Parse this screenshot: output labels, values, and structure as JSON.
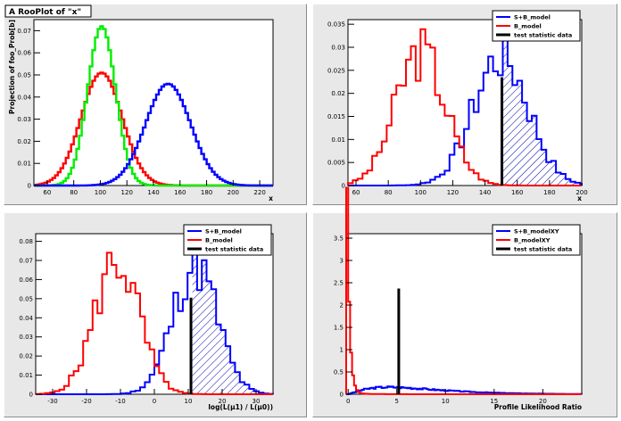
{
  "chart_data": [
    {
      "type": "line",
      "title": "A RooPlot of \"x\"",
      "xlabel": "x",
      "ylabel": "Projection of foo_Prob[b]",
      "xlim": [
        50,
        230
      ],
      "ylim": [
        0,
        0.075
      ],
      "xticks": [
        60,
        80,
        100,
        120,
        140,
        160,
        180,
        200,
        220
      ],
      "yticks": [
        0,
        0.01,
        0.02,
        0.03,
        0.04,
        0.05,
        0.06,
        0.07
      ],
      "series": [
        {
          "color": "#ff0000",
          "shape": "gauss",
          "mean": 100,
          "sigma": 15.5,
          "peak": 0.051
        },
        {
          "color": "#00ee00",
          "shape": "gauss",
          "mean": 100,
          "sigma": 10.5,
          "peak": 0.072
        },
        {
          "color": "#0000ff",
          "shape": "gauss",
          "mean": 150,
          "sigma": 17,
          "peak": 0.046
        }
      ]
    },
    {
      "type": "histogram",
      "title": "",
      "xlabel": "x",
      "ylabel": "",
      "xlim": [
        55,
        200
      ],
      "ylim": [
        0,
        0.036
      ],
      "xticks": [
        60,
        80,
        100,
        120,
        140,
        160,
        180,
        200
      ],
      "yticks": [
        0,
        0.005,
        0.01,
        0.015,
        0.02,
        0.025,
        0.03,
        0.035
      ],
      "test_statistic": 150.5,
      "test_height": 0.0235,
      "legend": [
        "S+B_model",
        "B_model",
        "test statistic data"
      ],
      "series": [
        {
          "name": "S+B_model",
          "color": "#0000ff",
          "shape": "gauss",
          "mean": 150,
          "sigma": 17,
          "peak": 0.028,
          "seed": 7,
          "bin": 3
        },
        {
          "name": "B_model",
          "color": "#ff0000",
          "shape": "gauss",
          "mean": 100,
          "sigma": 15.5,
          "peak": 0.029,
          "seed": 3,
          "bin": 3
        }
      ]
    },
    {
      "type": "histogram",
      "title": "",
      "xlabel": "log(L(μ1) / L(μ0))",
      "ylabel": "",
      "xlim": [
        -35,
        35
      ],
      "ylim": [
        0,
        0.084
      ],
      "xticks": [
        -30,
        -20,
        -10,
        0,
        10,
        20,
        30
      ],
      "yticks": [
        0,
        0.01,
        0.02,
        0.03,
        0.04,
        0.05,
        0.06,
        0.07,
        0.08
      ],
      "test_statistic": 10.8,
      "test_height": 0.0505,
      "legend": [
        "S+B_model",
        "B_model",
        "test statistic data"
      ],
      "series": [
        {
          "name": "S+B_model",
          "color": "#0000ff",
          "shape": "gauss",
          "mean": 12,
          "sigma": 6.5,
          "peak": 0.068,
          "seed": 11,
          "bin": 1.4
        },
        {
          "name": "B_model",
          "color": "#ff0000",
          "shape": "gauss",
          "mean": -11,
          "sigma": 6.5,
          "peak": 0.07,
          "seed": 5,
          "bin": 1.4
        }
      ]
    },
    {
      "type": "histogram",
      "title": "",
      "xlabel": "Profile Likelihood Ratio",
      "ylabel": "",
      "xlim": [
        -0.2,
        24
      ],
      "ylim": [
        0,
        3.6
      ],
      "xticks": [
        0,
        5,
        10,
        15,
        20
      ],
      "yticks": [
        0,
        0.5,
        1,
        1.5,
        2,
        2.5,
        3,
        3.5
      ],
      "test_statistic": 5.2,
      "test_height": 2.37,
      "legend": [
        "S+B_modelXY",
        "B_modelXY",
        "test statistic data"
      ],
      "series": [
        {
          "name": "S+B_modelXY",
          "color": "#0000ff",
          "shape": "broad",
          "peak": 0.15
        },
        {
          "name": "B_modelXY",
          "color": "#ff0000",
          "shape": "spike",
          "peak": 3.1
        }
      ]
    }
  ]
}
